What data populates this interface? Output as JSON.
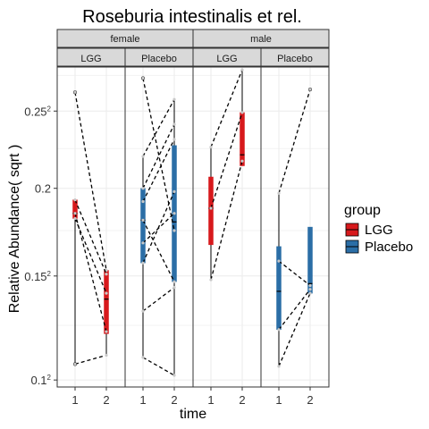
{
  "chart_data": {
    "type": "box",
    "title": "Roseburia intestinalis et rel.",
    "xlabel": "time",
    "ylabel": "Relative Abundance( sqrt )",
    "x_categories": [
      "1",
      "2"
    ],
    "y_scale": "sqrt",
    "y_ticks": [
      {
        "value": 0.1,
        "base": "0.1",
        "sup": "2"
      },
      {
        "value": 0.15,
        "base": "0.15",
        "sup": "2"
      },
      {
        "value": 0.2,
        "base": "0.2",
        "sup": ""
      },
      {
        "value": 0.25,
        "base": "0.25",
        "sup": "2"
      }
    ],
    "ylim": [
      0.097,
      0.281
    ],
    "facet_cols": [
      "female",
      "male"
    ],
    "facet_subcols": [
      "LGG",
      "Placebo"
    ],
    "legend": {
      "title": "group",
      "items": [
        {
          "label": "LGG",
          "color": "#d7191c"
        },
        {
          "label": "Placebo",
          "color": "#2b6ea6"
        }
      ]
    },
    "panels": [
      {
        "sex": "female",
        "group": "LGG",
        "color": "#d7191c",
        "boxes": [
          {
            "x": 1,
            "lower_whisker": 0.107,
            "q1": 0.182,
            "median": 0.185,
            "q3": 0.193,
            "upper_whisker": 0.193,
            "outliers": [
              0.107,
              0.263
            ]
          },
          {
            "x": 2,
            "lower_whisker": 0.111,
            "q1": 0.121,
            "median": 0.138,
            "q3": 0.153,
            "upper_whisker": 0.153,
            "outliers": []
          }
        ],
        "pairs": [
          [
            0.263,
            0.153
          ],
          [
            0.193,
            0.151
          ],
          [
            0.185,
            0.122
          ],
          [
            0.182,
            0.141
          ],
          [
            0.107,
            0.111
          ]
        ]
      },
      {
        "sex": "female",
        "group": "Placebo",
        "color": "#2b6ea6",
        "boxes": [
          {
            "x": 1,
            "lower_whisker": 0.11,
            "q1": 0.157,
            "median": 0.181,
            "q3": 0.2,
            "upper_whisker": 0.22,
            "outliers": [
              0.273
            ]
          },
          {
            "x": 2,
            "lower_whisker": 0.102,
            "q1": 0.147,
            "median": 0.18,
            "q3": 0.227,
            "upper_whisker": 0.258,
            "outliers": []
          }
        ],
        "pairs": [
          [
            0.273,
            0.175
          ],
          [
            0.22,
            0.258
          ],
          [
            0.2,
            0.241
          ],
          [
            0.192,
            0.231
          ],
          [
            0.181,
            0.147
          ],
          [
            0.168,
            0.185
          ],
          [
            0.157,
            0.198
          ],
          [
            0.132,
            0.144
          ],
          [
            0.11,
            0.102
          ]
        ]
      },
      {
        "sex": "male",
        "group": "LGG",
        "color": "#d7191c",
        "boxes": [
          {
            "x": 1,
            "lower_whisker": 0.148,
            "q1": 0.167,
            "median": 0.188,
            "q3": 0.207,
            "upper_whisker": 0.226,
            "outliers": []
          },
          {
            "x": 2,
            "lower_whisker": 0.214,
            "q1": 0.214,
            "median": 0.221,
            "q3": 0.249,
            "upper_whisker": 0.28,
            "outliers": []
          }
        ],
        "pairs": [
          [
            0.226,
            0.279
          ],
          [
            0.188,
            0.249
          ],
          [
            0.148,
            0.217
          ]
        ]
      },
      {
        "sex": "male",
        "group": "Placebo",
        "color": "#2b6ea6",
        "boxes": [
          {
            "x": 1,
            "lower_whisker": 0.106,
            "q1": 0.123,
            "median": 0.142,
            "q3": 0.166,
            "upper_whisker": 0.197,
            "outliers": []
          },
          {
            "x": 2,
            "lower_whisker": 0.141,
            "q1": 0.141,
            "median": 0.146,
            "q3": 0.177,
            "upper_whisker": 0.177,
            "outliers": [
              0.265
            ]
          }
        ],
        "pairs": [
          [
            0.197,
            0.265
          ],
          [
            0.158,
            0.145
          ],
          [
            0.123,
            0.143
          ],
          [
            0.106,
            0.141
          ]
        ]
      }
    ]
  }
}
